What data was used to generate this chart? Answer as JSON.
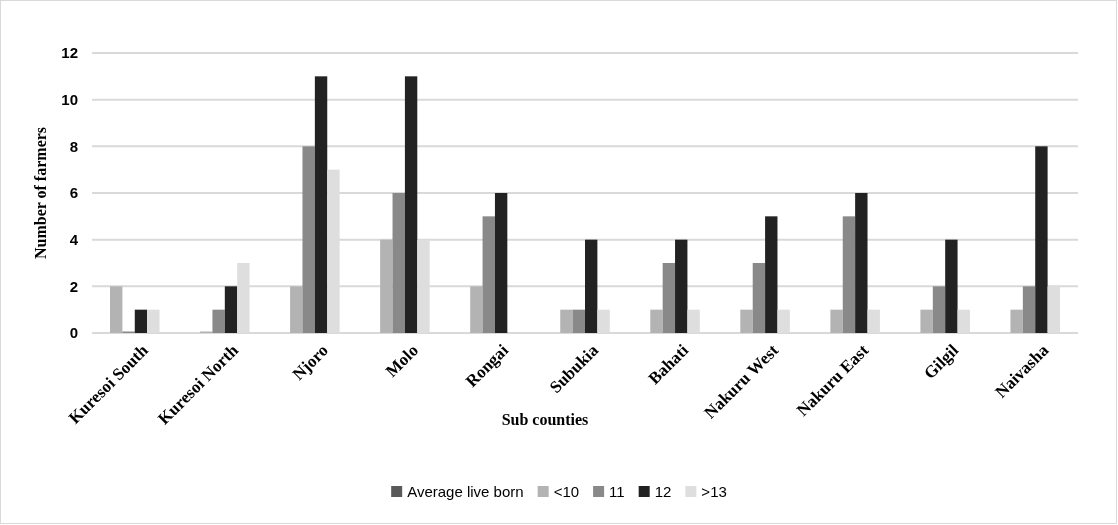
{
  "chart_data": {
    "type": "bar",
    "xlabel": "Sub counties",
    "ylabel": "Number of farmers",
    "categories": [
      "Kuresoi South",
      "Kuresoi North",
      "Njoro",
      "Molo",
      "Rongai",
      "Subukia",
      "Bahati",
      "Nakuru West",
      "Nakuru East",
      "Gilgil",
      "Naivasha"
    ],
    "series": [
      {
        "name": "Average live born",
        "color": "#595959",
        "values": [
          null,
          null,
          null,
          null,
          null,
          null,
          null,
          null,
          null,
          null,
          null
        ]
      },
      {
        "name": "<10",
        "color": "#b3b3b3",
        "values": [
          2,
          0,
          2,
          4,
          2,
          1,
          1,
          1,
          1,
          1,
          1
        ]
      },
      {
        "name": "11",
        "color": "#898989",
        "values": [
          0,
          1,
          8,
          6,
          5,
          1,
          3,
          3,
          5,
          2,
          2
        ]
      },
      {
        "name": "12",
        "color": "#222222",
        "values": [
          1,
          2,
          11,
          11,
          6,
          4,
          4,
          5,
          6,
          4,
          8
        ]
      },
      {
        "name": ">13",
        "color": "#dedede",
        "values": [
          1,
          3,
          7,
          4,
          null,
          1,
          1,
          1,
          1,
          1,
          2
        ]
      }
    ],
    "ylim": [
      0,
      12
    ],
    "yticks": [
      0,
      2,
      4,
      6,
      8,
      10,
      12
    ],
    "grid": "y",
    "legend": "bottom"
  }
}
